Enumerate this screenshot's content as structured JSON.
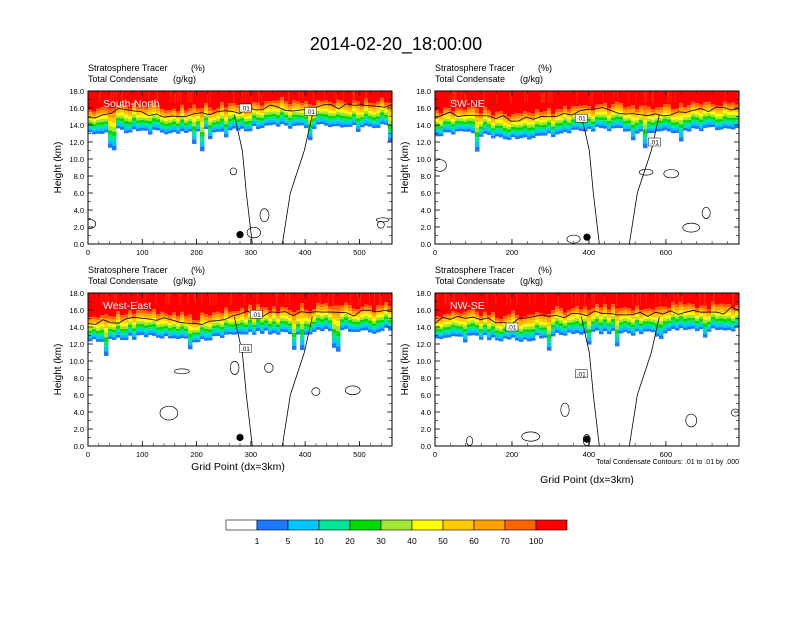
{
  "title": "2014-02-20_18:00:00",
  "colors": {
    "bins": [
      "#ffffff",
      "#1e78ff",
      "#00c8ff",
      "#00e696",
      "#00dc00",
      "#a0e632",
      "#ffff00",
      "#ffc800",
      "#ffa000",
      "#ff6400",
      "#ff0000"
    ],
    "contour": "#000000",
    "marker": "#000000"
  },
  "shared": {
    "var1": "Stratosphere Tracer",
    "unit1": "(%)",
    "var2": "Total Condensate",
    "unit2": "(g/kg)",
    "ylabel": "Height (km)",
    "xlabel": "Grid Point (dx=3km)",
    "contour_note": "Total Condensate Contours: .01 to .01 by .000",
    "contour_label": ".01"
  },
  "colorbar": {
    "labels": [
      "1",
      "5",
      "10",
      "20",
      "30",
      "40",
      "50",
      "60",
      "70",
      "100"
    ]
  },
  "chart_data": [
    {
      "type": "heatmap",
      "title": "South-North",
      "xlim": [
        0,
        560
      ],
      "ylim": [
        0,
        18
      ],
      "xticks": [
        0,
        100,
        200,
        300,
        400,
        500
      ],
      "yticks": [
        0.0,
        2.0,
        4.0,
        6.0,
        8.0,
        10.0,
        12.0,
        14.0,
        16.0,
        18.0
      ],
      "tropopause_km": [
        14.5,
        15.0,
        15.0,
        14.5,
        14.8,
        15.0,
        15.2,
        15.5,
        15.3,
        15.6,
        15.4,
        15.5
      ],
      "marker": {
        "x": 280,
        "y": 1.1
      },
      "labels": [
        {
          "x": 290,
          "y": 16.0
        },
        {
          "x": 410,
          "y": 15.6
        }
      ]
    },
    {
      "type": "heatmap",
      "title": "SW-NE",
      "xlim": [
        0,
        790
      ],
      "ylim": [
        0,
        18
      ],
      "xticks": [
        0,
        200,
        400,
        600
      ],
      "yticks": [
        0.0,
        2.0,
        4.0,
        6.0,
        8.0,
        10.0,
        12.0,
        14.0,
        16.0,
        18.0
      ],
      "tropopause_km": [
        14.5,
        14.8,
        14.3,
        14.0,
        14.4,
        14.8,
        15.2,
        14.9,
        14.7,
        15.0,
        15.2,
        15.4
      ],
      "marker": {
        "x": 395,
        "y": 0.8
      },
      "labels": [
        {
          "x": 380,
          "y": 14.8
        },
        {
          "x": 570,
          "y": 12.0
        }
      ]
    },
    {
      "type": "heatmap",
      "title": "West-East",
      "xlim": [
        0,
        560
      ],
      "ylim": [
        0,
        18
      ],
      "xticks": [
        0,
        100,
        200,
        300,
        400,
        500
      ],
      "yticks": [
        0.0,
        2.0,
        4.0,
        6.0,
        8.0,
        10.0,
        12.0,
        14.0,
        16.0,
        18.0
      ],
      "tropopause_km": [
        14.0,
        14.2,
        14.5,
        14.3,
        14.0,
        14.6,
        15.0,
        14.8,
        15.0,
        15.2,
        15.0,
        15.3
      ],
      "marker": {
        "x": 280,
        "y": 1.0
      },
      "labels": [
        {
          "x": 310,
          "y": 15.5
        },
        {
          "x": 290,
          "y": 11.5
        }
      ]
    },
    {
      "type": "heatmap",
      "title": "NW-SE",
      "xlim": [
        0,
        790
      ],
      "ylim": [
        0,
        18
      ],
      "xticks": [
        0,
        200,
        400,
        600
      ],
      "yticks": [
        0.0,
        2.0,
        4.0,
        6.0,
        8.0,
        10.0,
        12.0,
        14.0,
        16.0,
        18.0
      ],
      "tropopause_km": [
        14.2,
        14.5,
        14.3,
        14.0,
        14.6,
        14.8,
        15.0,
        14.8,
        15.1,
        15.3,
        15.2,
        15.4
      ],
      "marker": {
        "x": 395,
        "y": 0.8
      },
      "labels": [
        {
          "x": 200,
          "y": 14.0
        },
        {
          "x": 380,
          "y": 8.5
        }
      ]
    }
  ]
}
